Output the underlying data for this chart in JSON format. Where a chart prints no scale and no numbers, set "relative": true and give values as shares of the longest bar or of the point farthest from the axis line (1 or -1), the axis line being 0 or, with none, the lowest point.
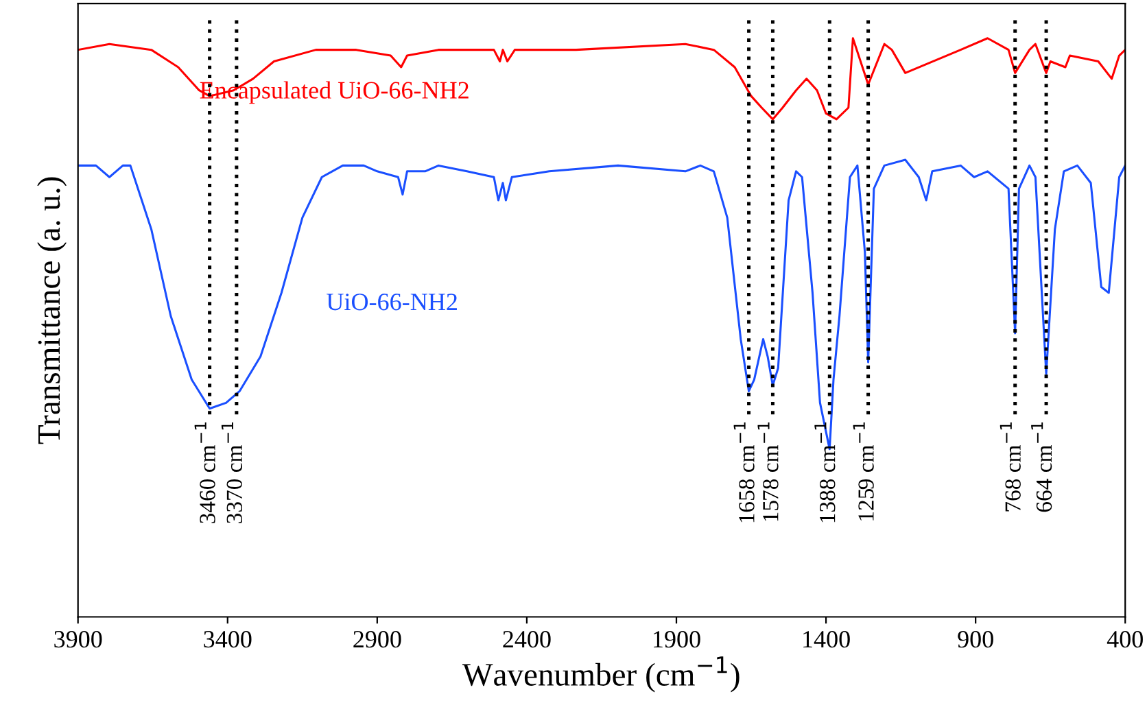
{
  "chart_data": {
    "type": "line",
    "relative": true,
    "xlabel": "Wavenumber (cm$^{−1}$)",
    "ylabel": "Transmittance (a. u.)",
    "xlim": [
      3900,
      400
    ],
    "xticks": [
      3900,
      3400,
      2900,
      2400,
      1900,
      1400,
      900,
      400
    ],
    "tick_labels": "x",
    "grid": false,
    "legend": false,
    "marker": "none",
    "line_style": "solid",
    "series": [
      {
        "name": "Encapsulated UiO-66-NH2",
        "color": "#ff0000",
        "x": [
          3900,
          3795,
          3655,
          3565,
          3495,
          3460,
          3380,
          3315,
          3245,
          3105,
          2970,
          2855,
          2820,
          2800,
          2695,
          2510,
          2490,
          2480,
          2465,
          2440,
          2235,
          1870,
          1775,
          1705,
          1650,
          1615,
          1578,
          1545,
          1500,
          1465,
          1430,
          1400,
          1365,
          1325,
          1310,
          1259,
          1205,
          1180,
          1135,
          950,
          860,
          790,
          768,
          720,
          700,
          664,
          650,
          600,
          585,
          490,
          445,
          420,
          400
        ],
        "values": [
          0.98,
          0.99,
          0.98,
          0.95,
          0.91,
          0.9,
          0.91,
          0.93,
          0.96,
          0.98,
          0.98,
          0.97,
          0.95,
          0.97,
          0.98,
          0.98,
          0.96,
          0.98,
          0.96,
          0.98,
          0.98,
          0.99,
          0.98,
          0.95,
          0.9,
          0.88,
          0.86,
          0.88,
          0.91,
          0.93,
          0.91,
          0.87,
          0.86,
          0.88,
          1.0,
          0.92,
          0.99,
          0.98,
          0.94,
          0.98,
          1.0,
          0.98,
          0.94,
          0.98,
          0.99,
          0.94,
          0.96,
          0.95,
          0.97,
          0.96,
          0.93,
          0.97,
          0.98
        ]
      },
      {
        "name": "UiO-66-NH2",
        "color": "#1a4fff",
        "x": [
          3900,
          3840,
          3795,
          3750,
          3725,
          3655,
          3590,
          3520,
          3460,
          3405,
          3360,
          3290,
          3220,
          3150,
          3085,
          3015,
          2945,
          2900,
          2830,
          2815,
          2800,
          2740,
          2695,
          2600,
          2510,
          2495,
          2480,
          2470,
          2450,
          2325,
          2095,
          1870,
          1820,
          1775,
          1730,
          1685,
          1658,
          1640,
          1610,
          1595,
          1578,
          1560,
          1525,
          1500,
          1480,
          1445,
          1420,
          1388,
          1375,
          1355,
          1320,
          1295,
          1270,
          1259,
          1240,
          1205,
          1135,
          1090,
          1065,
          1045,
          950,
          905,
          860,
          790,
          768,
          755,
          720,
          700,
          664,
          635,
          605,
          560,
          515,
          480,
          455,
          420,
          400
        ],
        "values": [
          0.78,
          0.78,
          0.76,
          0.78,
          0.78,
          0.67,
          0.52,
          0.41,
          0.36,
          0.37,
          0.39,
          0.45,
          0.56,
          0.69,
          0.76,
          0.78,
          0.78,
          0.77,
          0.76,
          0.73,
          0.77,
          0.77,
          0.78,
          0.77,
          0.76,
          0.72,
          0.75,
          0.72,
          0.76,
          0.77,
          0.78,
          0.77,
          0.78,
          0.77,
          0.69,
          0.48,
          0.39,
          0.41,
          0.48,
          0.45,
          0.4,
          0.43,
          0.72,
          0.77,
          0.76,
          0.56,
          0.37,
          0.29,
          0.41,
          0.52,
          0.76,
          0.78,
          0.63,
          0.44,
          0.74,
          0.78,
          0.79,
          0.76,
          0.72,
          0.77,
          0.78,
          0.76,
          0.77,
          0.74,
          0.49,
          0.74,
          0.78,
          0.76,
          0.42,
          0.67,
          0.77,
          0.78,
          0.75,
          0.57,
          0.56,
          0.76,
          0.78
        ]
      }
    ],
    "ref_lines": [
      {
        "axis": "x",
        "value": 3460,
        "label": "3460 cm$^{−1}$",
        "color": "#000000",
        "line_style": "dotted"
      },
      {
        "axis": "x",
        "value": 3370,
        "label": "3370 cm$^{−1}$",
        "color": "#000000",
        "line_style": "dotted"
      },
      {
        "axis": "x",
        "value": 1658,
        "label": "1658 cm$^{−1}$",
        "color": "#000000",
        "line_style": "dotted"
      },
      {
        "axis": "x",
        "value": 1578,
        "label": "1578 cm$^{−1}$",
        "color": "#000000",
        "line_style": "dotted"
      },
      {
        "axis": "x",
        "value": 1388,
        "label": "1388 cm$^{−1}$",
        "color": "#000000",
        "line_style": "dotted"
      },
      {
        "axis": "x",
        "value": 1259,
        "label": "1259 cm$^{−1}$",
        "color": "#000000",
        "line_style": "dotted"
      },
      {
        "axis": "x",
        "value": 768,
        "label": "768 cm$^{−1}$",
        "color": "#000000",
        "line_style": "dotted"
      },
      {
        "axis": "x",
        "value": 664,
        "label": "664 cm$^{−1}$",
        "color": "#000000",
        "line_style": "dotted"
      }
    ]
  }
}
